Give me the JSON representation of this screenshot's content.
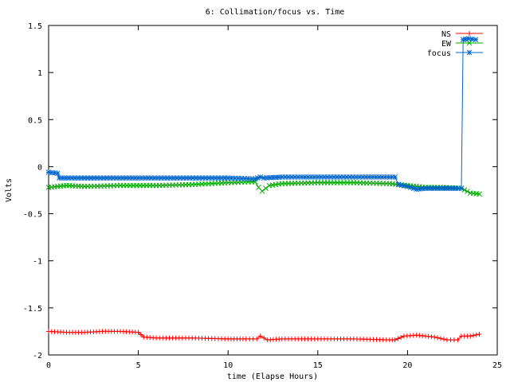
{
  "chart_data": {
    "type": "line",
    "title": "6: Collimation/focus vs. Time",
    "xlabel": "time (Elapse Hours)",
    "ylabel": "Volts",
    "xlim": [
      0,
      25
    ],
    "ylim": [
      -2,
      1.5
    ],
    "xticks": [
      0,
      5,
      10,
      15,
      20,
      25
    ],
    "yticks": [
      -2,
      -1.5,
      -1,
      -0.5,
      0,
      0.5,
      1,
      1.5
    ],
    "grid": false,
    "legend_position": "top-right",
    "series": [
      {
        "name": "NS",
        "color": "#ff0000",
        "marker": "plus",
        "x": [
          0,
          1,
          2,
          3,
          4,
          5,
          5.3,
          6,
          8,
          10,
          11,
          11.6,
          11.8,
          12.2,
          13,
          15,
          17,
          19,
          19.3,
          19.8,
          20.5,
          21,
          21.5,
          22.2,
          22.8,
          23,
          23.5,
          24
        ],
        "y": [
          -1.75,
          -1.76,
          -1.76,
          -1.75,
          -1.75,
          -1.76,
          -1.81,
          -1.82,
          -1.82,
          -1.83,
          -1.83,
          -1.83,
          -1.8,
          -1.84,
          -1.83,
          -1.83,
          -1.83,
          -1.84,
          -1.84,
          -1.8,
          -1.79,
          -1.8,
          -1.81,
          -1.84,
          -1.84,
          -1.8,
          -1.8,
          -1.78
        ]
      },
      {
        "name": "EW",
        "color": "#00aa00",
        "marker": "x",
        "x": [
          0,
          0.5,
          1,
          2,
          4,
          6,
          8,
          10,
          11.5,
          11.7,
          11.9,
          12.3,
          13,
          15,
          17,
          19,
          19.5,
          20,
          21,
          22,
          23,
          23.5,
          24
        ],
        "y": [
          -0.22,
          -0.21,
          -0.2,
          -0.21,
          -0.2,
          -0.2,
          -0.19,
          -0.17,
          -0.16,
          -0.22,
          -0.26,
          -0.2,
          -0.18,
          -0.17,
          -0.17,
          -0.18,
          -0.19,
          -0.2,
          -0.22,
          -0.22,
          -0.23,
          -0.28,
          -0.29
        ]
      },
      {
        "name": "focus",
        "color": "#0066cc",
        "marker": "star",
        "x": [
          0,
          0.5,
          0.6,
          2,
          5,
          10,
          11.5,
          11.8,
          12,
          13,
          15,
          19.3,
          19.5,
          20,
          20.5,
          21,
          22,
          22.8,
          23,
          23.1,
          23.4,
          23.8
        ],
        "y": [
          -0.06,
          -0.07,
          -0.12,
          -0.12,
          -0.12,
          -0.12,
          -0.13,
          -0.11,
          -0.12,
          -0.11,
          -0.11,
          -0.11,
          -0.19,
          -0.21,
          -0.24,
          -0.23,
          -0.23,
          -0.23,
          -0.23,
          1.35,
          1.36,
          1.35
        ]
      }
    ]
  }
}
